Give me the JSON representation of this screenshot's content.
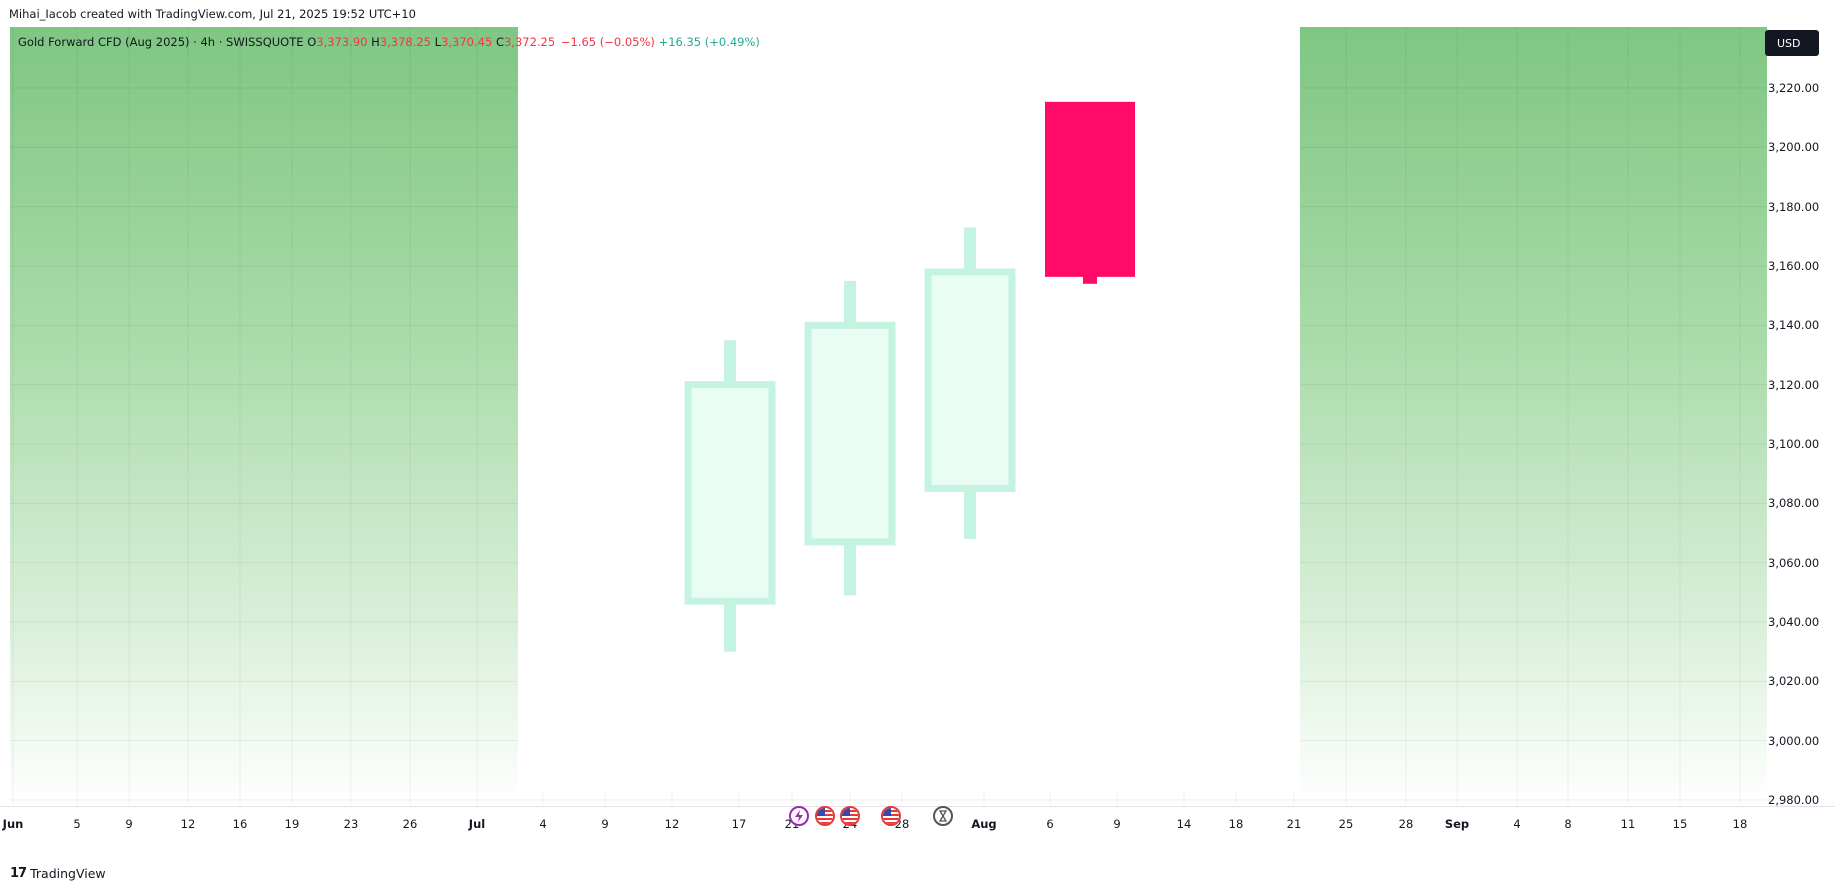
{
  "header": {
    "author_line": "Mihai_Iacob created with TradingView.com, Jul 21, 2025 19:52 UTC+10"
  },
  "legend": {
    "symbol": "Gold Forward CFD (Aug 2025) · 4h · SWISSQUOTE",
    "o_key": "O",
    "o_val": "3,373.90",
    "h_key": "H",
    "h_val": "3,378.25",
    "l_key": "L",
    "l_val": "3,370.45",
    "c_key": "C",
    "c_val": "3,372.25",
    "change": "−1.65 (−0.05%)",
    "change2": "+16.35 (+0.49%)"
  },
  "currency": "USD",
  "footer": {
    "brand": "TradingView",
    "mark": "17"
  },
  "colors": {
    "up_candle": "#c5f3e1",
    "down_candle": "#ff0a68",
    "bg_gradient_top": "#7fc683",
    "highlight_box": "#ffffff"
  },
  "chart_data": {
    "type": "candlestick",
    "title": "Gold Forward CFD (Aug 2025) · 4h · SWISSQUOTE",
    "price_ticks": [
      "3,220.00",
      "3,200.00",
      "3,180.00",
      "3,160.00",
      "3,140.00",
      "3,120.00",
      "3,100.00",
      "3,080.00",
      "3,060.00",
      "3,040.00",
      "3,020.00",
      "3,000.00",
      "2,980.00"
    ],
    "ylim": [
      2976,
      3240
    ],
    "time_ticks": [
      {
        "label": "Jun",
        "bold": true
      },
      {
        "label": "5"
      },
      {
        "label": "9"
      },
      {
        "label": "12"
      },
      {
        "label": "16"
      },
      {
        "label": "19"
      },
      {
        "label": "23"
      },
      {
        "label": "26"
      },
      {
        "label": "Jul",
        "bold": true
      },
      {
        "label": "4"
      },
      {
        "label": "9"
      },
      {
        "label": "12"
      },
      {
        "label": "17"
      },
      {
        "label": "21"
      },
      {
        "label": "24"
      },
      {
        "label": "28"
      },
      {
        "label": "Aug",
        "bold": true
      },
      {
        "label": "6"
      },
      {
        "label": "9"
      },
      {
        "label": "14"
      },
      {
        "label": "18"
      },
      {
        "label": "21"
      },
      {
        "label": "25"
      },
      {
        "label": "28"
      },
      {
        "label": "Sep",
        "bold": true
      },
      {
        "label": "4"
      },
      {
        "label": "8"
      },
      {
        "label": "11"
      },
      {
        "label": "15"
      },
      {
        "label": "18"
      }
    ],
    "candles": [
      {
        "date": "Jul 17",
        "open": 3047,
        "high": 3135,
        "low": 3030,
        "close": 3120,
        "dir": "up"
      },
      {
        "date": "Jul 24",
        "open": 3067,
        "high": 3155,
        "low": 3049,
        "close": 3140,
        "dir": "up"
      },
      {
        "date": "Jul 30",
        "open": 3085,
        "high": 3173,
        "low": 3068,
        "close": 3158,
        "dir": "up"
      },
      {
        "date": "Aug 5",
        "open": 3215,
        "high": 3215,
        "low": 3154,
        "close": 3156,
        "dir": "down"
      }
    ],
    "grid": true,
    "events": [
      "lightning-event-icon",
      "us-flag-icon",
      "us-flag-icon",
      "us-flag-icon",
      "hourglass-icon"
    ]
  }
}
